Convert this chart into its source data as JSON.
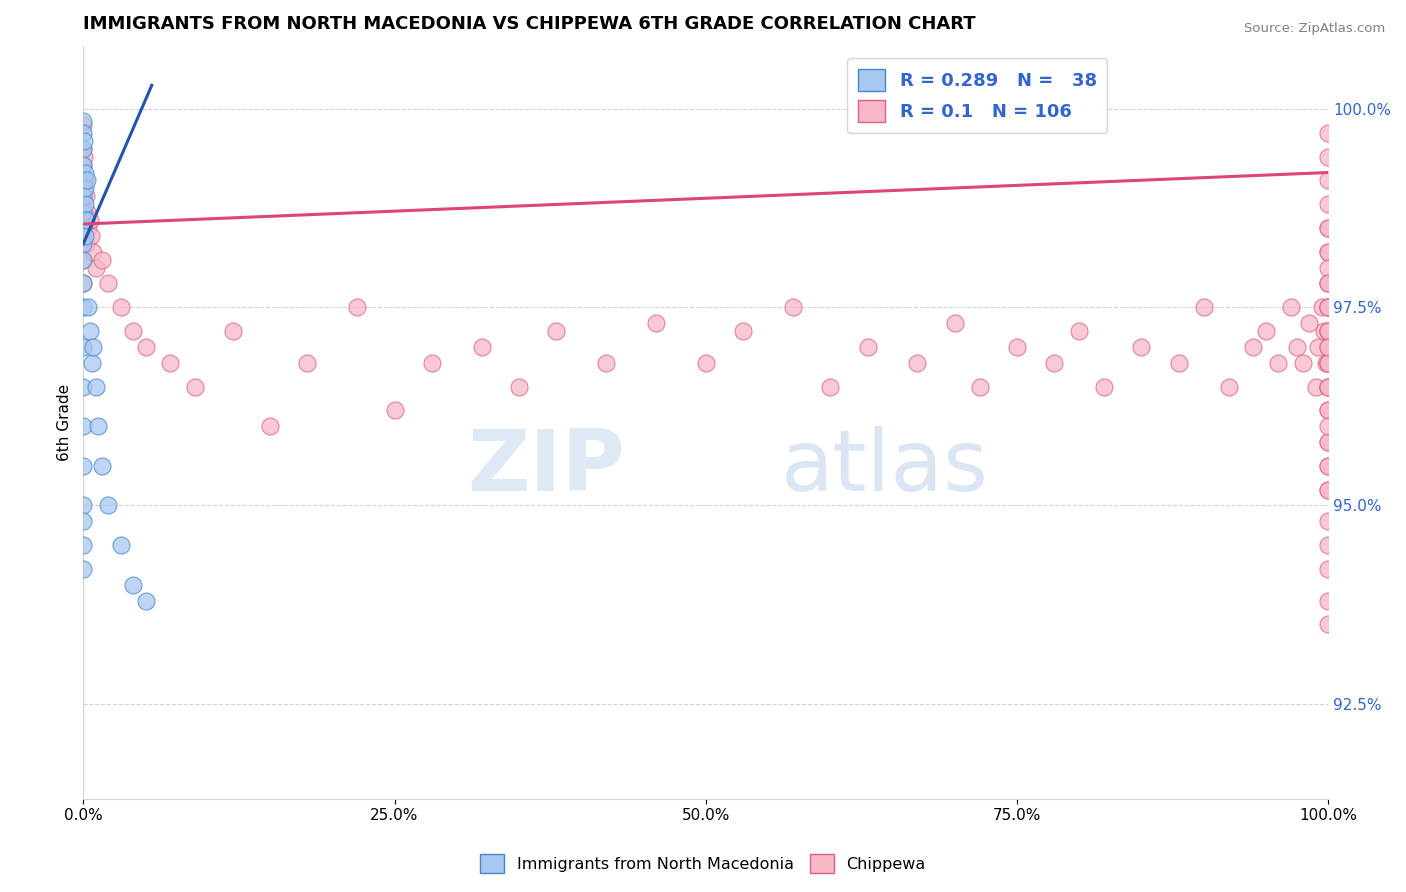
{
  "title": "IMMIGRANTS FROM NORTH MACEDONIA VS CHIPPEWA 6TH GRADE CORRELATION CHART",
  "source": "Source: ZipAtlas.com",
  "ylabel": "6th Grade",
  "x_min": 0.0,
  "x_max": 100.0,
  "y_min": 91.3,
  "y_max": 100.8,
  "y_ticks": [
    92.5,
    95.0,
    97.5,
    100.0
  ],
  "y_tick_labels": [
    "92.5%",
    "95.0%",
    "97.5%",
    "100.0%"
  ],
  "x_ticks": [
    0.0,
    25.0,
    50.0,
    75.0,
    100.0
  ],
  "x_tick_labels": [
    "0.0%",
    "25.0%",
    "50.0%",
    "75.0%",
    "100.0%"
  ],
  "blue_fill": "#a8c8f0",
  "blue_edge": "#4488cc",
  "pink_fill": "#f8b8c8",
  "pink_edge": "#e06080",
  "blue_line_color": "#2255aa",
  "pink_line_color": "#dd4477",
  "label_color": "#3366cc",
  "R_blue": 0.289,
  "N_blue": 38,
  "R_pink": 0.1,
  "N_pink": 106,
  "legend_label_blue": "Immigrants from North Macedonia",
  "legend_label_pink": "Chippewa",
  "watermark_zip": "ZIP",
  "watermark_atlas": "atlas",
  "blue_x": [
    0.0,
    0.0,
    0.0,
    0.0,
    0.0,
    0.0,
    0.0,
    0.0,
    0.0,
    0.0,
    0.0,
    0.0,
    0.0,
    0.0,
    0.0,
    0.0,
    0.0,
    0.0,
    0.0,
    0.0,
    0.05,
    0.1,
    0.1,
    0.1,
    0.15,
    0.2,
    0.3,
    0.4,
    0.5,
    0.7,
    0.8,
    1.0,
    1.2,
    1.5,
    2.0,
    3.0,
    4.0,
    5.0
  ],
  "blue_y": [
    99.85,
    99.7,
    99.5,
    99.3,
    99.1,
    98.9,
    98.7,
    98.5,
    98.3,
    98.1,
    97.8,
    97.5,
    97.0,
    96.5,
    96.0,
    95.5,
    95.0,
    94.8,
    94.5,
    94.2,
    99.6,
    99.2,
    98.8,
    98.4,
    99.0,
    98.6,
    99.1,
    97.5,
    97.2,
    96.8,
    97.0,
    96.5,
    96.0,
    95.5,
    95.0,
    94.5,
    94.0,
    93.8
  ],
  "pink_x": [
    0.0,
    0.0,
    0.0,
    0.0,
    0.0,
    0.0,
    0.0,
    0.0,
    0.05,
    0.1,
    0.1,
    0.2,
    0.2,
    0.3,
    0.4,
    0.5,
    0.6,
    0.8,
    1.0,
    1.5,
    2.0,
    3.0,
    4.0,
    5.0,
    7.0,
    9.0,
    12.0,
    15.0,
    18.0,
    22.0,
    25.0,
    28.0,
    32.0,
    35.0,
    38.0,
    42.0,
    46.0,
    50.0,
    53.0,
    57.0,
    60.0,
    63.0,
    67.0,
    70.0,
    72.0,
    75.0,
    78.0,
    80.0,
    82.0,
    85.0,
    88.0,
    90.0,
    92.0,
    94.0,
    95.0,
    96.0,
    97.0,
    97.5,
    98.0,
    98.5,
    99.0,
    99.2,
    99.5,
    99.7,
    99.8,
    100.0,
    100.0,
    100.0,
    100.0,
    100.0,
    100.0,
    100.0,
    100.0,
    100.0,
    100.0,
    100.0,
    100.0,
    100.0,
    100.0,
    100.0,
    100.0,
    100.0,
    100.0,
    100.0,
    100.0,
    100.0,
    100.0,
    100.0,
    100.0,
    100.0,
    100.0,
    100.0,
    100.0,
    100.0,
    100.0,
    100.0,
    100.0,
    100.0,
    100.0,
    100.0,
    100.0,
    100.0,
    100.0,
    100.0,
    100.0,
    100.0
  ],
  "pink_y": [
    99.8,
    99.5,
    99.3,
    99.0,
    98.7,
    98.4,
    98.1,
    97.8,
    99.4,
    99.1,
    98.6,
    98.9,
    98.3,
    98.7,
    98.5,
    98.6,
    98.4,
    98.2,
    98.0,
    98.1,
    97.8,
    97.5,
    97.2,
    97.0,
    96.8,
    96.5,
    97.2,
    96.0,
    96.8,
    97.5,
    96.2,
    96.8,
    97.0,
    96.5,
    97.2,
    96.8,
    97.3,
    96.8,
    97.2,
    97.5,
    96.5,
    97.0,
    96.8,
    97.3,
    96.5,
    97.0,
    96.8,
    97.2,
    96.5,
    97.0,
    96.8,
    97.5,
    96.5,
    97.0,
    97.2,
    96.8,
    97.5,
    97.0,
    96.8,
    97.3,
    96.5,
    97.0,
    97.5,
    97.2,
    96.8,
    99.7,
    99.4,
    99.1,
    98.8,
    98.5,
    98.2,
    97.8,
    97.5,
    97.2,
    96.8,
    96.5,
    96.2,
    95.8,
    95.5,
    95.2,
    94.8,
    94.5,
    94.2,
    93.8,
    93.5,
    98.5,
    98.2,
    97.8,
    97.5,
    97.2,
    96.8,
    96.5,
    96.2,
    95.8,
    95.5,
    95.2,
    96.0,
    96.5,
    97.0,
    97.5,
    98.0,
    96.8,
    97.2,
    97.8,
    97.5,
    97.0
  ]
}
